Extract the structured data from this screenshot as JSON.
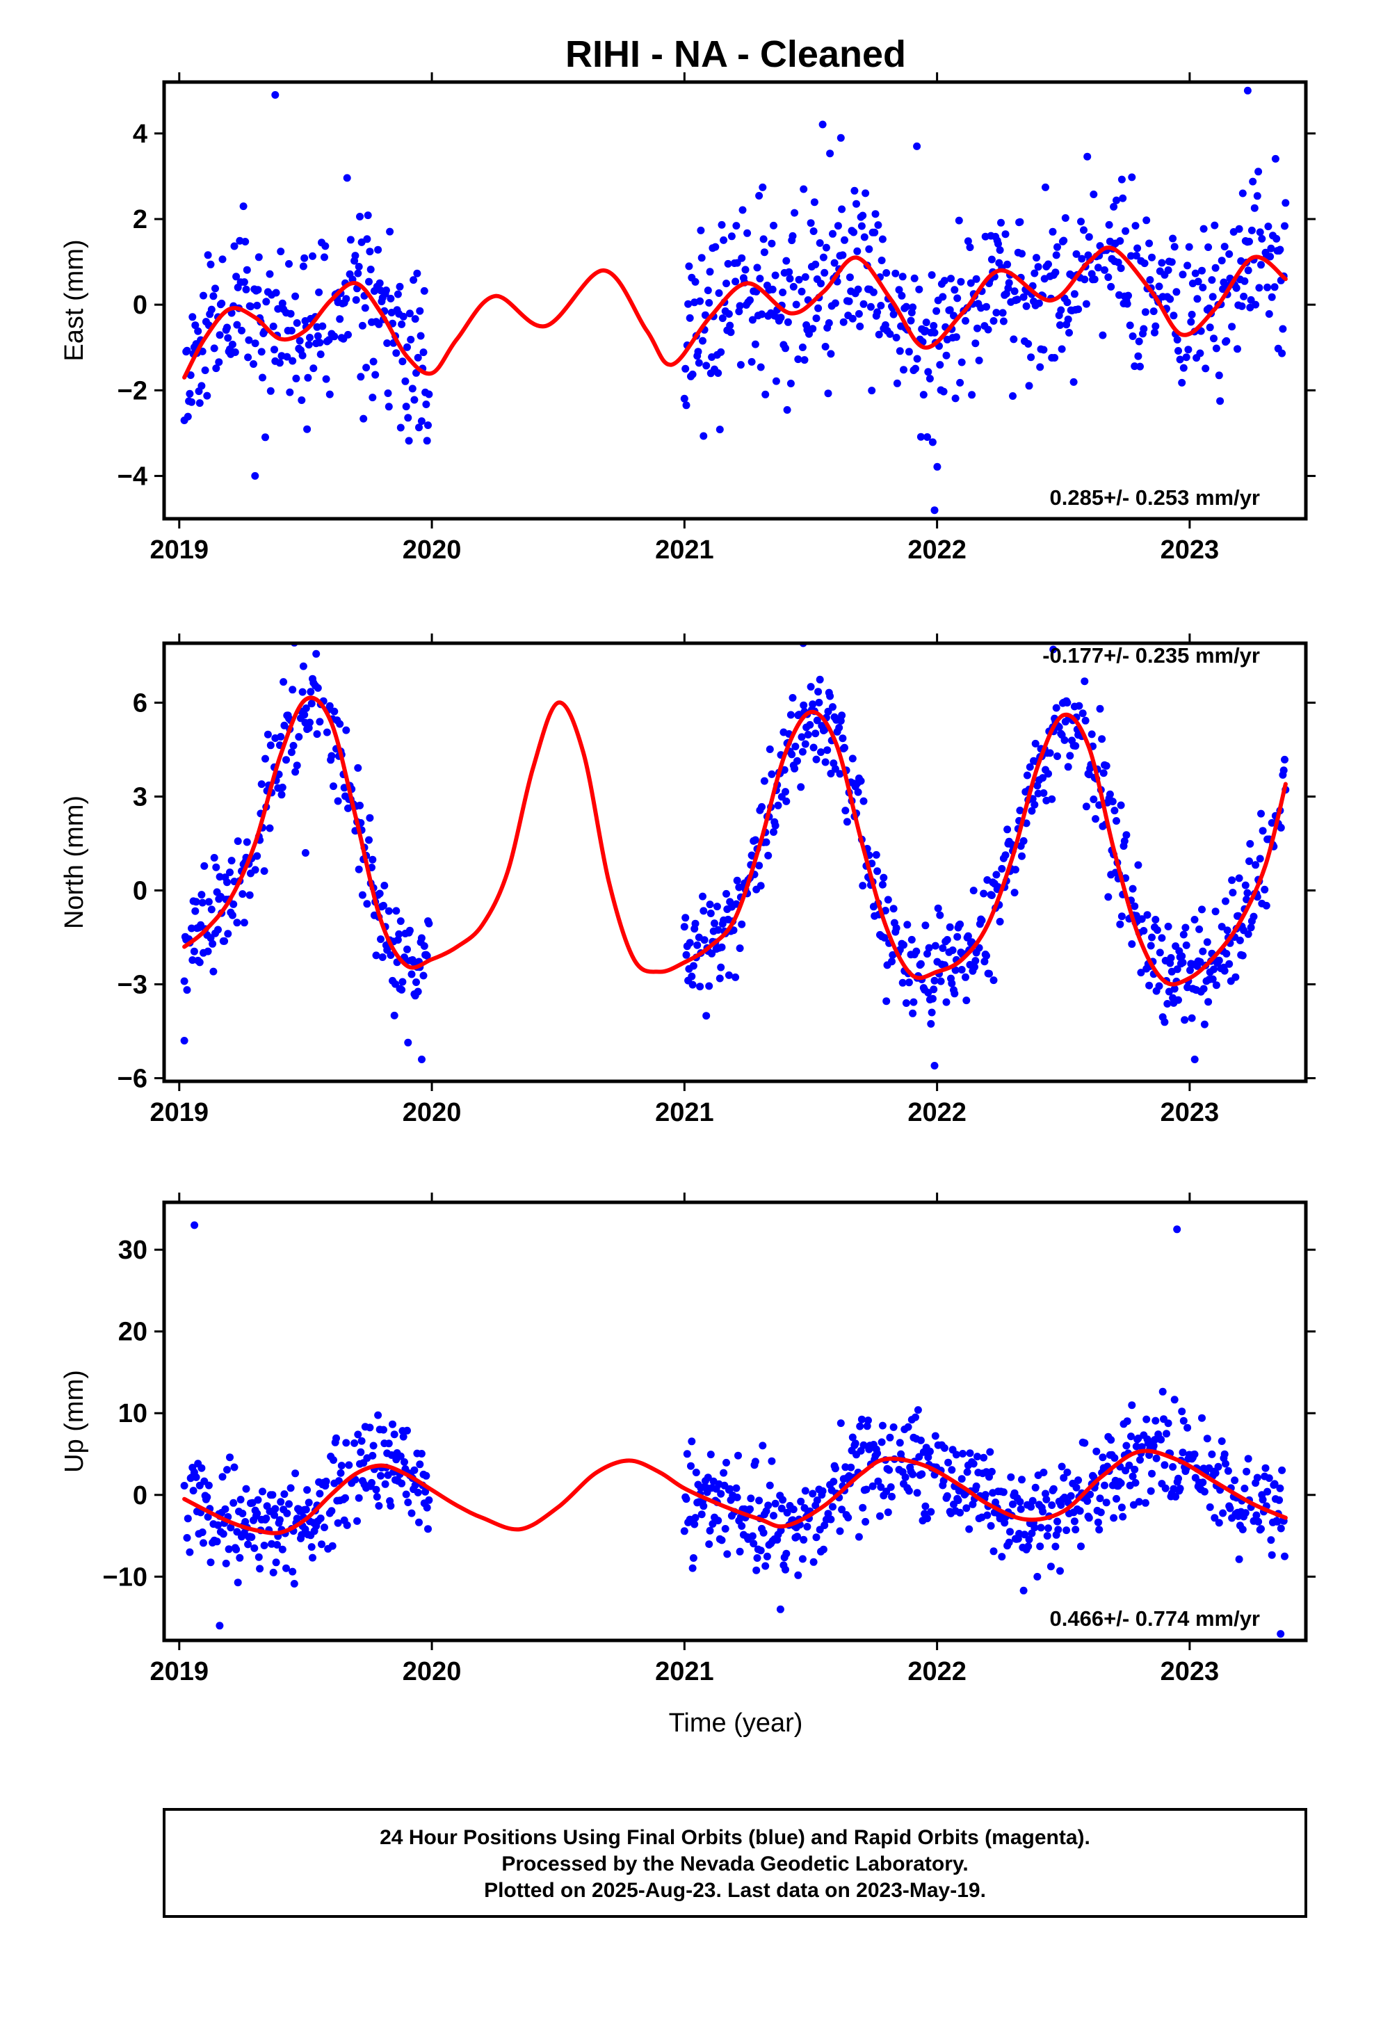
{
  "colors": {
    "points": "#0000ff",
    "model": "#ff0000",
    "frame": "#000000"
  },
  "chart_data": [
    {
      "type": "scatter",
      "title": "RIHI  - NA - Cleaned",
      "xlabel": "",
      "ylabel": "East (mm)",
      "xlim": [
        2018.94,
        2023.46
      ],
      "ylim": [
        -5.0,
        5.2
      ],
      "xticks": [
        "2019",
        "2020",
        "2021",
        "2022",
        "2023"
      ],
      "yticks": [
        "−4",
        "−2",
        "0",
        "2",
        "4"
      ],
      "grid": false,
      "rate_label": "0.285+/- 0.253 mm/yr",
      "data_gap": [
        2019.99,
        2021.0
      ],
      "model_x": [
        2019.02,
        2019.1,
        2019.2,
        2019.3,
        2019.4,
        2019.5,
        2019.6,
        2019.7,
        2019.8,
        2019.9,
        2020.0,
        2020.1,
        2020.25,
        2020.45,
        2020.68,
        2020.85,
        2020.95,
        2021.1,
        2021.25,
        2021.42,
        2021.55,
        2021.68,
        2021.82,
        2021.95,
        2022.1,
        2022.25,
        2022.45,
        2022.6,
        2022.7,
        2022.85,
        2022.97,
        2023.1,
        2023.25,
        2023.38
      ],
      "model_y": [
        -1.7,
        -0.8,
        -0.1,
        -0.3,
        -0.8,
        -0.6,
        0.1,
        0.5,
        -0.2,
        -1.2,
        -1.6,
        -0.8,
        0.2,
        -0.5,
        0.8,
        -0.6,
        -1.4,
        -0.3,
        0.5,
        -0.2,
        0.3,
        1.1,
        0.1,
        -1.0,
        -0.2,
        0.8,
        0.1,
        1.0,
        1.3,
        0.3,
        -0.7,
        -0.1,
        1.1,
        0.6
      ],
      "points": {
        "seed": 11,
        "segments": [
          [
            2019.02,
            2019.99
          ],
          [
            2021.0,
            2023.38
          ]
        ],
        "spacing": 0.0036,
        "noise": 1.05,
        "outliers": [
          [
            2019.38,
            4.9
          ],
          [
            2021.92,
            3.7
          ],
          [
            2023.23,
            5.0
          ],
          [
            2021.99,
            -4.8
          ],
          [
            2019.3,
            -4.0
          ]
        ]
      }
    },
    {
      "type": "scatter",
      "title": "",
      "xlabel": "",
      "ylabel": "North (mm)",
      "xlim": [
        2018.94,
        2023.46
      ],
      "ylim": [
        -6.1,
        7.9
      ],
      "xticks": [
        "2019",
        "2020",
        "2021",
        "2022",
        "2023"
      ],
      "yticks": [
        "−6",
        "−3",
        "0",
        "3",
        "6"
      ],
      "grid": false,
      "rate_label": "-0.177+/- 0.235 mm/yr",
      "data_gap": [
        2019.99,
        2021.0
      ],
      "model_x": [
        2019.02,
        2019.1,
        2019.2,
        2019.3,
        2019.4,
        2019.5,
        2019.6,
        2019.7,
        2019.8,
        2019.9,
        2020.0,
        2020.1,
        2020.2,
        2020.3,
        2020.4,
        2020.5,
        2020.6,
        2020.7,
        2020.8,
        2020.9,
        2021.0,
        2021.1,
        2021.2,
        2021.3,
        2021.4,
        2021.5,
        2021.6,
        2021.7,
        2021.8,
        2021.9,
        2022.0,
        2022.1,
        2022.2,
        2022.3,
        2022.4,
        2022.5,
        2022.6,
        2022.7,
        2022.8,
        2022.9,
        2023.0,
        2023.1,
        2023.2,
        2023.3,
        2023.38
      ],
      "model_y": [
        -1.8,
        -1.3,
        -0.3,
        1.5,
        4.3,
        6.1,
        5.4,
        2.3,
        -1.0,
        -2.4,
        -2.2,
        -1.8,
        -1.1,
        0.6,
        3.9,
        6.0,
        4.4,
        0.3,
        -2.2,
        -2.6,
        -2.3,
        -1.8,
        -0.9,
        1.5,
        4.4,
        5.7,
        4.7,
        1.6,
        -1.2,
        -2.7,
        -2.6,
        -2.2,
        -1.1,
        1.1,
        4.0,
        5.6,
        4.6,
        1.3,
        -1.5,
        -2.9,
        -2.8,
        -2.1,
        -1.0,
        0.8,
        3.4
      ],
      "points": {
        "seed": 23,
        "segments": [
          [
            2019.02,
            2019.99
          ],
          [
            2021.0,
            2023.38
          ]
        ],
        "spacing": 0.0036,
        "noise": 0.85,
        "outliers": [
          [
            2019.02,
            -4.8
          ],
          [
            2019.5,
            1.2
          ],
          [
            2019.96,
            -5.4
          ],
          [
            2021.47,
            7.9
          ],
          [
            2022.46,
            7.7
          ],
          [
            2023.02,
            -5.4
          ],
          [
            2021.99,
            -5.6
          ]
        ]
      }
    },
    {
      "type": "scatter",
      "title": "",
      "xlabel": "Time (year)",
      "ylabel": "Up (mm)",
      "xlim": [
        2018.94,
        2023.46
      ],
      "ylim": [
        -17.8,
        35.8
      ],
      "xticks": [
        "2019",
        "2020",
        "2021",
        "2022",
        "2023"
      ],
      "yticks": [
        "−10",
        "0",
        "10",
        "20",
        "30"
      ],
      "grid": false,
      "rate_label": "0.466+/- 0.774 mm/yr",
      "data_gap": [
        2019.99,
        2021.0
      ],
      "model_x": [
        2019.02,
        2019.1,
        2019.2,
        2019.3,
        2019.4,
        2019.5,
        2019.6,
        2019.7,
        2019.8,
        2019.9,
        2020.0,
        2020.1,
        2020.2,
        2020.35,
        2020.5,
        2020.65,
        2020.78,
        2020.9,
        2021.0,
        2021.15,
        2021.3,
        2021.4,
        2021.55,
        2021.7,
        2021.8,
        2021.95,
        2022.1,
        2022.2,
        2022.35,
        2022.5,
        2022.65,
        2022.8,
        2022.95,
        2023.1,
        2023.25,
        2023.38
      ],
      "model_y": [
        -0.5,
        -1.8,
        -3.3,
        -4.3,
        -4.6,
        -3.0,
        0.0,
        2.6,
        3.6,
        2.5,
        0.6,
        -1.3,
        -2.8,
        -4.2,
        -1.5,
        2.7,
        4.2,
        2.8,
        0.8,
        -1.3,
        -3.0,
        -3.8,
        -1.4,
        2.6,
        4.4,
        3.6,
        1.0,
        -1.1,
        -3.0,
        -2.0,
        2.2,
        5.3,
        4.3,
        1.6,
        -1.1,
        -2.8
      ],
      "points": {
        "seed": 37,
        "segments": [
          [
            2019.02,
            2019.99
          ],
          [
            2021.0,
            2023.38
          ]
        ],
        "spacing": 0.0036,
        "noise": 3.0,
        "outliers": [
          [
            2019.06,
            33.0
          ],
          [
            2022.95,
            32.5
          ],
          [
            2019.16,
            -16.0
          ],
          [
            2023.36,
            -17.0
          ],
          [
            2021.38,
            -14.0
          ]
        ]
      }
    }
  ],
  "footer": {
    "line1": "24 Hour Positions Using Final Orbits (blue) and Rapid Orbits (magenta).",
    "line2": "Processed by the Nevada Geodetic Laboratory.",
    "line3": "Plotted on 2025-Aug-23. Last data on 2023-May-19."
  }
}
